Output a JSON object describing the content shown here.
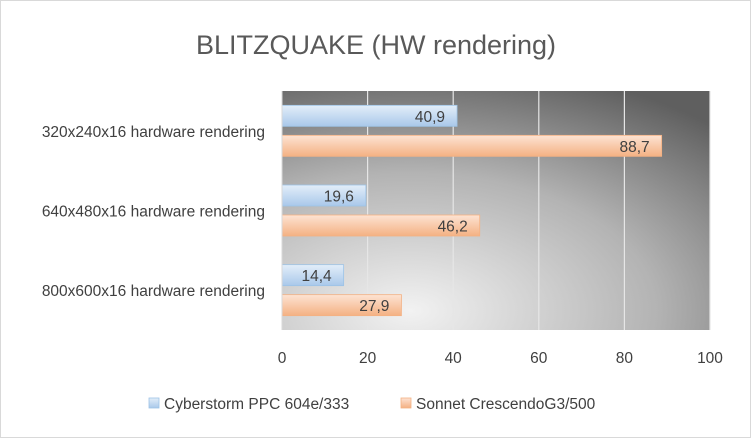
{
  "chart_data": {
    "type": "bar",
    "orientation": "horizontal",
    "title": "BLITZQUAKE (HW rendering)",
    "categories": [
      "320x240x16 hardware rendering",
      "640x480x16 hardware rendering",
      "800x600x16 hardware rendering"
    ],
    "series": [
      {
        "name": "Cyberstorm PPC 604e/333",
        "values": [
          40.9,
          19.6,
          14.4
        ],
        "labels": [
          "40,9",
          "19,6",
          "14,4"
        ],
        "color": "#bdd7ee"
      },
      {
        "name": "Sonnet CrescendoG3/500",
        "values": [
          88.7,
          46.2,
          27.9
        ],
        "labels": [
          "88,7",
          "46,2",
          "27,9"
        ],
        "color": "#f8cbad"
      }
    ],
    "xlim": [
      0,
      100
    ],
    "xticks": [
      "0",
      "20",
      "40",
      "60",
      "80",
      "100"
    ],
    "grid": true,
    "legend": "bottom",
    "plot_background": "radial-gradient-gray"
  }
}
